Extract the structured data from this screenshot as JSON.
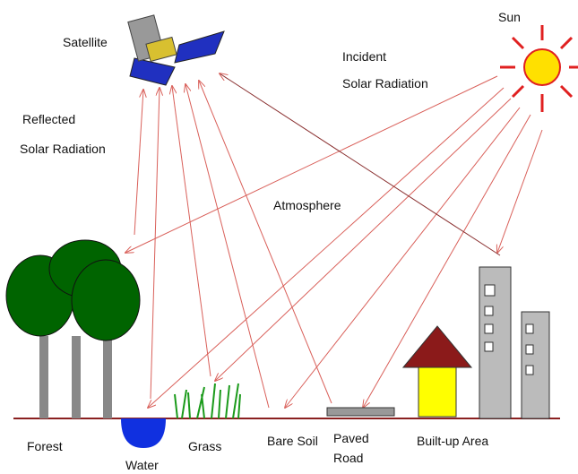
{
  "labels": {
    "satellite": "Satellite",
    "sun": "Sun",
    "incident": [
      "Incident",
      "Solar Radiation"
    ],
    "reflected": [
      "Reflected",
      "Solar Radiation"
    ],
    "atmosphere": "Atmosphere",
    "forest": "Forest",
    "water": "Water",
    "grass": "Grass",
    "bare_soil": "Bare Soil",
    "paved_road": [
      "Paved",
      "Road"
    ],
    "built_up": "Built-up Area"
  }
}
